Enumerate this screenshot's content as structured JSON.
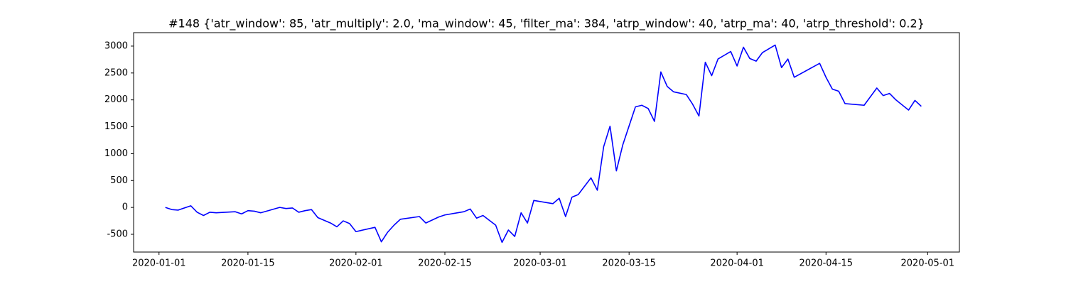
{
  "chart_data": {
    "type": "line",
    "title": "#148 {'atr_window': 85, 'atr_multiply': 2.0, 'ma_window': 45, 'filter_ma': 384, 'atrp_window': 40, 'atrp_ma': 40, 'atrp_threshold': 0.2}",
    "x": [
      "2020-01-02",
      "2020-01-03",
      "2020-01-04",
      "2020-01-06",
      "2020-01-07",
      "2020-01-08",
      "2020-01-09",
      "2020-01-10",
      "2020-01-13",
      "2020-01-14",
      "2020-01-15",
      "2020-01-16",
      "2020-01-17",
      "2020-01-20",
      "2020-01-21",
      "2020-01-22",
      "2020-01-23",
      "2020-01-24",
      "2020-01-25",
      "2020-01-26",
      "2020-01-28",
      "2020-01-29",
      "2020-01-30",
      "2020-01-31",
      "2020-02-01",
      "2020-02-04",
      "2020-02-05",
      "2020-02-06",
      "2020-02-07",
      "2020-02-08",
      "2020-02-11",
      "2020-02-12",
      "2020-02-14",
      "2020-02-15",
      "2020-02-18",
      "2020-02-19",
      "2020-02-20",
      "2020-02-21",
      "2020-02-23",
      "2020-02-24",
      "2020-02-25",
      "2020-02-26",
      "2020-02-27",
      "2020-02-28",
      "2020-02-29",
      "2020-03-03",
      "2020-03-04",
      "2020-03-05",
      "2020-03-06",
      "2020-03-07",
      "2020-03-09",
      "2020-03-10",
      "2020-03-11",
      "2020-03-12",
      "2020-03-13",
      "2020-03-14",
      "2020-03-16",
      "2020-03-17",
      "2020-03-18",
      "2020-03-19",
      "2020-03-20",
      "2020-03-21",
      "2020-03-22",
      "2020-03-24",
      "2020-03-25",
      "2020-03-26",
      "2020-03-27",
      "2020-03-28",
      "2020-03-29",
      "2020-03-31",
      "2020-04-01",
      "2020-04-02",
      "2020-04-03",
      "2020-04-04",
      "2020-04-05",
      "2020-04-07",
      "2020-04-08",
      "2020-04-09",
      "2020-04-10",
      "2020-04-14",
      "2020-04-15",
      "2020-04-16",
      "2020-04-17",
      "2020-04-18",
      "2020-04-21",
      "2020-04-22",
      "2020-04-23",
      "2020-04-24",
      "2020-04-25",
      "2020-04-26",
      "2020-04-28",
      "2020-04-29",
      "2020-04-30"
    ],
    "values": [
      0,
      -40,
      -50,
      30,
      -90,
      -150,
      -90,
      -100,
      -80,
      -120,
      -60,
      -70,
      -100,
      0,
      -20,
      -10,
      -90,
      -60,
      -40,
      -190,
      -290,
      -360,
      -250,
      -300,
      -450,
      -370,
      -640,
      -460,
      -330,
      -220,
      -170,
      -290,
      -180,
      -140,
      -80,
      -30,
      -200,
      -150,
      -330,
      -650,
      -420,
      -540,
      -100,
      -290,
      130,
      70,
      170,
      -170,
      190,
      240,
      550,
      320,
      1130,
      1510,
      680,
      1160,
      1870,
      1900,
      1840,
      1600,
      2520,
      2250,
      2150,
      2100,
      1920,
      1700,
      2700,
      2450,
      2760,
      2900,
      2630,
      2980,
      2770,
      2720,
      2880,
      3020,
      2600,
      2760,
      2420,
      2680,
      2420,
      2200,
      2160,
      1930,
      1900,
      2060,
      2220,
      2080,
      2120,
      2000,
      1810,
      1990,
      1880
    ],
    "color": "#0000ff",
    "xlim": [
      "2019-12-28",
      "2020-05-06"
    ],
    "xticks": [
      "2020-01-01",
      "2020-01-15",
      "2020-02-01",
      "2020-02-15",
      "2020-03-01",
      "2020-03-15",
      "2020-04-01",
      "2020-04-15",
      "2020-05-01"
    ],
    "ylim": [
      -830,
      3250
    ],
    "yticks": [
      -500,
      0,
      500,
      1000,
      1500,
      2000,
      2500,
      3000
    ]
  }
}
